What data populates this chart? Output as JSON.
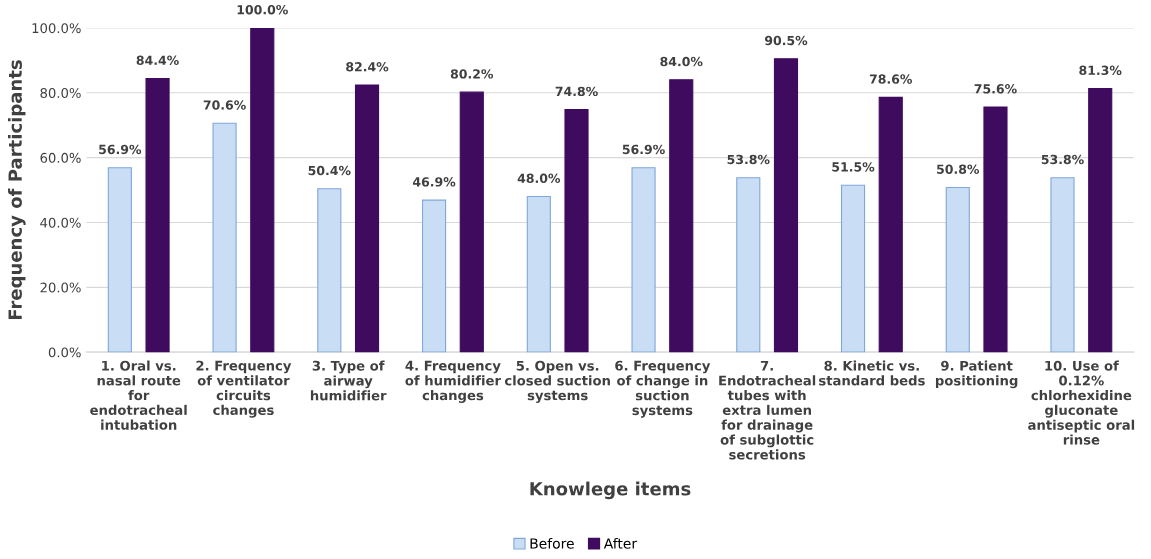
{
  "chart_data": {
    "type": "bar",
    "xlabel": "Knowlege items",
    "ylabel": "Frequency of Participants",
    "categories": [
      "1. Oral vs.\nnasal route\nfor\nendotracheal\nintubation",
      "2. Frequency\nof ventilator\ncircuits\nchanges",
      "3. Type of\nairway\nhumidifier",
      "4. Frequency\nof humidifier\nchanges",
      "5. Open vs.\nclosed suction\nsystems",
      "6. Frequency\nof change in\nsuction\nsystems",
      "7.\nEndotracheal\ntubes with\nextra lumen\nfor drainage\nof subglottic\nsecretions",
      "8. Kinetic vs.\nstandard beds",
      "9. Patient\npositioning",
      "10. Use of\n0.12%\nchlorhexidine\ngluconate\nantiseptic oral\nrinse"
    ],
    "series": [
      {
        "name": "Before",
        "color": "#c9def5",
        "values": [
          56.9,
          70.6,
          50.4,
          46.9,
          48.0,
          56.9,
          53.8,
          51.5,
          50.8,
          53.8
        ],
        "value_labels": [
          "56.9%",
          "70.6%",
          "50.4%",
          "46.9%",
          "48.0%",
          "56.9%",
          "53.8%",
          "51.5%",
          "50.8%",
          "53.8%"
        ]
      },
      {
        "name": "After",
        "color": "#3f0b5f",
        "values": [
          84.4,
          100.0,
          82.4,
          80.2,
          74.8,
          84.0,
          90.5,
          78.6,
          75.6,
          81.3
        ],
        "value_labels": [
          "84.4%",
          "100.0%",
          "82.4%",
          "80.2%",
          "74.8%",
          "84.0%",
          "90.5%",
          "78.6%",
          "75.6%",
          "81.3%"
        ]
      }
    ],
    "ylim": [
      0,
      100
    ],
    "yticks": [
      {
        "value": 0,
        "label": "0.0%"
      },
      {
        "value": 20,
        "label": "20.0%"
      },
      {
        "value": 40,
        "label": "40.0%"
      },
      {
        "value": 60,
        "label": "60.0%"
      },
      {
        "value": 80,
        "label": "80.0%"
      },
      {
        "value": 100,
        "label": "100.0%"
      }
    ],
    "grid": "y",
    "legend": "bottom"
  }
}
